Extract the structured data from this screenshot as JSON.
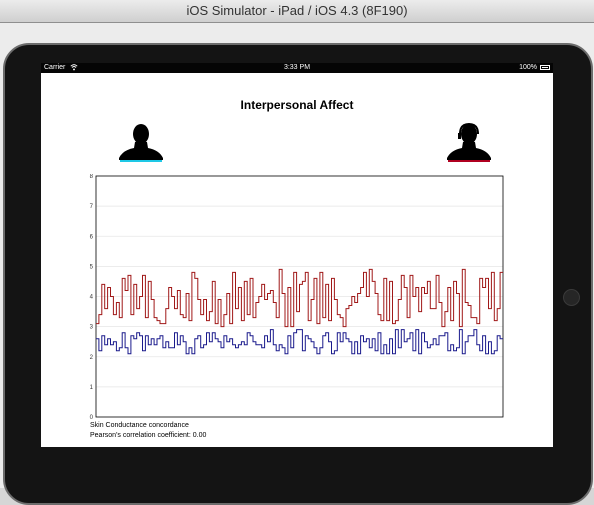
{
  "window": {
    "title": "iOS Simulator - iPad / iOS 4.3 (8F190)"
  },
  "status_bar": {
    "carrier": "Carrier",
    "time": "3:33 PM",
    "battery": "100%"
  },
  "app": {
    "title": "Interpersonal Affect",
    "caption_line1": "Skin Conductance concordance",
    "caption_line2": "Pearson's correlation coefficient: 0.00"
  },
  "avatars": {
    "left": {
      "icon": "person-silhouette-icon",
      "accent_color": "#1ec8e6"
    },
    "right": {
      "icon": "person-headset-silhouette-icon",
      "accent_color": "#b00020"
    }
  },
  "chart_data": {
    "type": "line",
    "title": "",
    "xlabel": "",
    "ylabel": "",
    "x": [
      0,
      3,
      6,
      9,
      12,
      15,
      18,
      21,
      24,
      27,
      30,
      33,
      36,
      39,
      42,
      45,
      48,
      51,
      54,
      57,
      60,
      63,
      66,
      69,
      72,
      75,
      78,
      81,
      84,
      87,
      90,
      93,
      96,
      99,
      102,
      105,
      108,
      111,
      114,
      117,
      120,
      123,
      126,
      129,
      132,
      135,
      138,
      141,
      144,
      147,
      150,
      153,
      156,
      159,
      162,
      165,
      168,
      171,
      174,
      177,
      180,
      183,
      186,
      189,
      192,
      195,
      198,
      201,
      204,
      207,
      210,
      213,
      216,
      219,
      222,
      225,
      228,
      231,
      234,
      237,
      240,
      243,
      246,
      249,
      252,
      255,
      258,
      261,
      264,
      267,
      270,
      273,
      276,
      279,
      282,
      285,
      288,
      291,
      294,
      297,
      300,
      303,
      306,
      309,
      312,
      315,
      318,
      321,
      324,
      327,
      330,
      333,
      336,
      339,
      342,
      345,
      348,
      351,
      354,
      357,
      360,
      363,
      366,
      369,
      372,
      375,
      378,
      381,
      384,
      387,
      390,
      393,
      396,
      399,
      402,
      405,
      408,
      411,
      414,
      417
    ],
    "ylim": [
      0,
      8
    ],
    "yticks": [
      "0",
      "1",
      "2",
      "3",
      "4",
      "5",
      "6",
      "7",
      "8"
    ],
    "grid": true,
    "series": [
      {
        "color": "#a01818",
        "values": [
          3.1,
          3.4,
          4.4,
          3.6,
          4.3,
          4.0,
          3.4,
          3.8,
          3.3,
          4.6,
          4.2,
          4.7,
          3.4,
          4.4,
          3.6,
          4.0,
          4.7,
          3.3,
          4.5,
          3.9,
          3.3,
          3.2,
          3.1,
          3.1,
          3.6,
          4.3,
          4.0,
          3.6,
          4.2,
          3.4,
          3.3,
          4.1,
          3.2,
          4.8,
          4.6,
          3.9,
          3.4,
          3.9,
          3.2,
          3.5,
          4.5,
          3.1,
          3.9,
          3.0,
          3.4,
          4.1,
          3.1,
          4.8,
          3.6,
          4.3,
          3.2,
          4.5,
          3.4,
          4.6,
          3.3,
          3.8,
          4.0,
          4.4,
          3.9,
          4.1,
          4.2,
          3.8,
          3.3,
          4.9,
          4.1,
          3.0,
          4.3,
          3.0,
          4.8,
          3.5,
          4.4,
          4.5,
          4.8,
          3.2,
          3.9,
          4.6,
          3.1,
          4.8,
          3.3,
          4.4,
          3.2,
          4.6,
          3.9,
          3.4,
          3.3,
          3.0,
          3.6,
          3.7,
          4.0,
          3.8,
          4.1,
          4.3,
          4.8,
          4.0,
          4.9,
          4.5,
          4.1,
          3.4,
          3.2,
          4.6,
          3.2,
          4.5,
          3.1,
          3.2,
          3.9,
          4.7,
          4.3,
          3.3,
          4.7,
          4.0,
          4.3,
          3.5,
          4.3,
          4.1,
          4.5,
          3.6,
          3.6,
          4.7,
          3.8,
          3.0,
          3.5,
          4.3,
          3.2,
          4.5,
          4.1,
          3.0,
          4.9,
          3.8,
          3.7,
          3.3,
          3.3,
          3.1,
          4.6,
          4.3,
          4.6,
          3.6,
          4.8,
          3.2,
          3.6,
          4.8
        ]
      },
      {
        "color": "#1a1a8c",
        "values": [
          2.6,
          2.2,
          2.7,
          2.4,
          2.6,
          2.4,
          2.5,
          2.2,
          2.3,
          2.8,
          2.3,
          2.1,
          2.7,
          2.6,
          2.8,
          2.7,
          2.2,
          2.7,
          2.4,
          2.6,
          2.4,
          2.6,
          2.7,
          2.3,
          2.5,
          2.3,
          2.3,
          2.8,
          2.4,
          2.7,
          2.5,
          2.1,
          2.3,
          2.1,
          2.6,
          2.7,
          2.3,
          2.4,
          2.8,
          2.5,
          2.8,
          2.6,
          2.5,
          2.3,
          2.7,
          2.5,
          2.6,
          2.4,
          2.3,
          2.4,
          2.5,
          2.4,
          2.8,
          2.7,
          2.5,
          2.4,
          2.4,
          2.3,
          2.7,
          2.5,
          2.9,
          2.4,
          2.2,
          2.4,
          2.3,
          2.1,
          2.7,
          2.3,
          2.8,
          2.9,
          2.9,
          2.2,
          2.7,
          2.6,
          2.5,
          2.3,
          2.1,
          2.3,
          2.7,
          2.8,
          2.5,
          2.1,
          2.2,
          2.8,
          2.5,
          2.8,
          2.6,
          2.5,
          2.1,
          2.5,
          2.1,
          2.7,
          2.5,
          2.6,
          2.3,
          2.6,
          2.2,
          2.8,
          2.1,
          2.4,
          2.1,
          2.6,
          2.1,
          2.9,
          2.3,
          2.9,
          2.5,
          2.6,
          2.8,
          2.2,
          2.9,
          2.1,
          2.8,
          2.5,
          2.3,
          2.4,
          2.6,
          2.4,
          2.7,
          2.7,
          2.8,
          2.2,
          2.4,
          2.2,
          2.3,
          2.9,
          2.1,
          2.5,
          2.7,
          2.7,
          2.9,
          2.4,
          2.2,
          2.7,
          2.1,
          2.5,
          2.1,
          2.2,
          2.7,
          2.6
        ]
      }
    ]
  }
}
